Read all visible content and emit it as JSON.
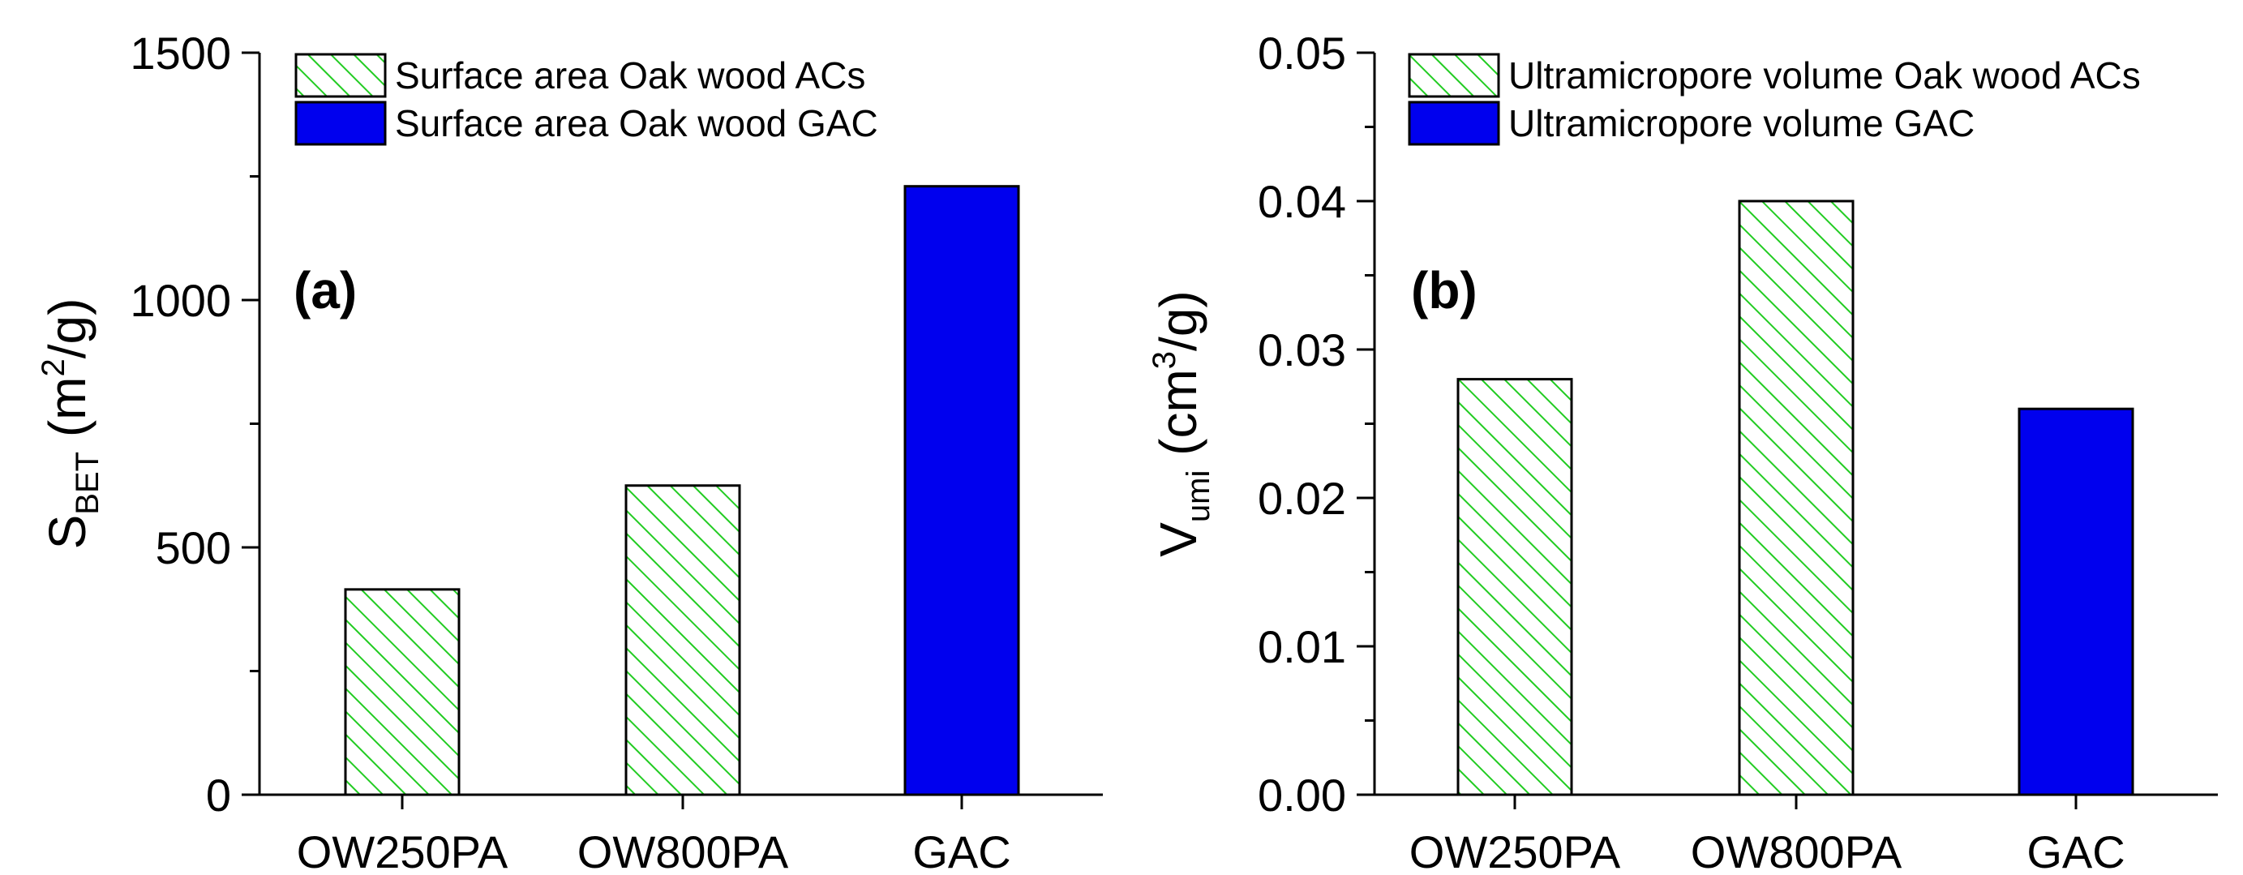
{
  "chart_data": [
    {
      "type": "bar",
      "panel_label": "(a)",
      "categories": [
        "OW250PA",
        "OW800PA",
        "GAC"
      ],
      "values": [
        415,
        625,
        1230
      ],
      "bar_series": [
        0,
        0,
        1
      ],
      "ylim": [
        0,
        1500
      ],
      "yticks": [
        "0",
        "500",
        "1000",
        "1500"
      ],
      "ytick_values": [
        0,
        500,
        1000,
        1500
      ],
      "yminor_step": 250,
      "ylabel": {
        "main": "S",
        "sub": "BET",
        "pre_sup": " (m",
        "sup": "2",
        "post_sup": "/g)"
      },
      "legend_position": "top-left",
      "series": [
        {
          "name": "Surface area Oak wood ACs",
          "fill": "hatch",
          "color": "#22cc22"
        },
        {
          "name": "Surface area Oak wood GAC",
          "fill": "solid",
          "color": "#0000ee"
        }
      ]
    },
    {
      "type": "bar",
      "panel_label": "(b)",
      "categories": [
        "OW250PA",
        "OW800PA",
        "GAC"
      ],
      "values": [
        0.028,
        0.04,
        0.026
      ],
      "bar_series": [
        0,
        0,
        1
      ],
      "ylim": [
        0,
        0.05
      ],
      "yticks": [
        "0.00",
        "0.01",
        "0.02",
        "0.03",
        "0.04",
        "0.05"
      ],
      "ytick_values": [
        0,
        0.01,
        0.02,
        0.03,
        0.04,
        0.05
      ],
      "yminor_step": 0.005,
      "ylabel": {
        "main": "V",
        "sub": "umi",
        "pre_sup": " (cm",
        "sup": "3",
        "post_sup": "/g)"
      },
      "legend_position": "top-left",
      "series": [
        {
          "name": "Ultramicropore volume Oak wood ACs",
          "fill": "hatch",
          "color": "#22cc22"
        },
        {
          "name": "Ultramicropore volume GAC",
          "fill": "solid",
          "color": "#0000ee"
        }
      ]
    }
  ]
}
